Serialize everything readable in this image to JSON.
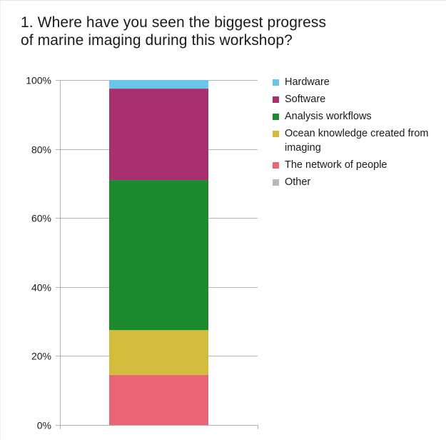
{
  "chart_data": {
    "type": "bar",
    "stacked": true,
    "title": "1.  Where have you seen the biggest progress of marine imaging during this workshop?",
    "title_lines": [
      "1.  Where have you seen the biggest progress",
      "of marine imaging during this workshop?"
    ],
    "xlabel": "",
    "ylabel": "",
    "ylim": [
      0,
      100
    ],
    "yticks": [
      0,
      20,
      40,
      60,
      80,
      100
    ],
    "ytick_labels": [
      "0%",
      "20%",
      "40%",
      "60%",
      "80%",
      "100%"
    ],
    "grid": true,
    "legend_position": "right",
    "categories": [
      ""
    ],
    "series": [
      {
        "name": "The network of people",
        "values": [
          14.5
        ],
        "color": "#eb6478"
      },
      {
        "name": "Ocean knowledge created from imaging",
        "values": [
          13.0
        ],
        "color": "#d2bc3e"
      },
      {
        "name": "Analysis workflows",
        "values": [
          43.5
        ],
        "color": "#1e8a2e"
      },
      {
        "name": "Software",
        "values": [
          26.5
        ],
        "color": "#a8306e"
      },
      {
        "name": "Hardware",
        "values": [
          2.5
        ],
        "color": "#6bc4ea"
      },
      {
        "name": "Other",
        "values": [
          0
        ],
        "color": "#b8b8b8"
      }
    ],
    "legend": [
      {
        "name": "Hardware",
        "color": "#6bc4ea"
      },
      {
        "name": "Software",
        "color": "#a8306e"
      },
      {
        "name": "Analysis workflows",
        "color": "#1e8a2e"
      },
      {
        "name": "Ocean knowledge created from imaging",
        "color": "#d2bc3e"
      },
      {
        "name": "The network of people",
        "color": "#eb6478"
      },
      {
        "name": "Other",
        "color": "#b8b8b8"
      }
    ]
  },
  "colors": {
    "grid": "#b3b3b3",
    "axis_text": "#1a1a1a"
  }
}
